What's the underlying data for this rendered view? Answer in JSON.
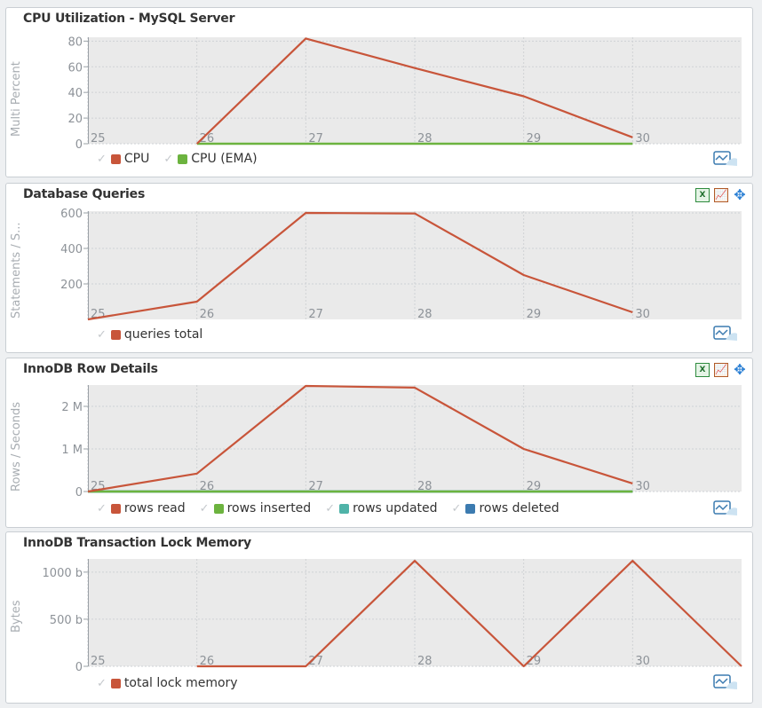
{
  "colors": {
    "plot_bg": "#eaeaea",
    "grid": "#cfd2d5",
    "tick": "#8d9298",
    "red": "#c8553a",
    "green": "#6cb33f",
    "teal": "#4fb3a8",
    "blue": "#3c7bb0"
  },
  "charts": [
    {
      "title": "CPU Utilization - MySQL Server",
      "ylabel": "Multi Percent",
      "legend": [
        {
          "name": "CPU",
          "color": "#c8553a"
        },
        {
          "name": "CPU (EMA)",
          "color": "#6cb33f"
        }
      ],
      "show_tools": false
    },
    {
      "title": "Database Queries",
      "ylabel": "Statements / S...",
      "legend": [
        {
          "name": "queries total",
          "color": "#c8553a"
        }
      ],
      "show_tools": true
    },
    {
      "title": "InnoDB Row Details",
      "ylabel": "Rows / Seconds",
      "legend": [
        {
          "name": "rows read",
          "color": "#c8553a"
        },
        {
          "name": "rows inserted",
          "color": "#6cb33f"
        },
        {
          "name": "rows updated",
          "color": "#4fb3a8"
        },
        {
          "name": "rows deleted",
          "color": "#3c7bb0"
        }
      ],
      "show_tools": true
    },
    {
      "title": "InnoDB Transaction Lock Memory",
      "ylabel": "Bytes",
      "legend": [
        {
          "name": "total lock memory",
          "color": "#c8553a"
        }
      ],
      "show_tools": false
    }
  ],
  "tools": {
    "excel": "X",
    "chart": "📈",
    "move": "✥"
  },
  "chart_data": [
    {
      "type": "line",
      "title": "CPU Utilization - MySQL Server",
      "ylabel": "Multi Percent",
      "xlim": [
        25,
        31
      ],
      "ylim": [
        0,
        83
      ],
      "x_ticks": [
        25,
        26,
        27,
        28,
        29,
        30
      ],
      "y_ticks": [
        {
          "v": 0,
          "t": "0"
        },
        {
          "v": 20,
          "t": "20"
        },
        {
          "v": 40,
          "t": "40"
        },
        {
          "v": 60,
          "t": "60"
        },
        {
          "v": 80,
          "t": "80"
        }
      ],
      "series": [
        {
          "name": "CPU",
          "color": "#c8553a",
          "width": 2.2,
          "points": [
            [
              26,
              0
            ],
            [
              27,
              82
            ],
            [
              28,
              59
            ],
            [
              29,
              37
            ],
            [
              30,
              5
            ]
          ]
        },
        {
          "name": "CPU (EMA)",
          "color": "#6cb33f",
          "width": 2.5,
          "points": [
            [
              26,
              0
            ],
            [
              30,
              0
            ]
          ]
        }
      ]
    },
    {
      "type": "line",
      "title": "Database Queries",
      "ylabel": "Statements / S...",
      "xlim": [
        25,
        31
      ],
      "ylim": [
        0,
        610
      ],
      "x_ticks": [
        25,
        26,
        27,
        28,
        29,
        30
      ],
      "y_ticks": [
        {
          "v": 200,
          "t": "200"
        },
        {
          "v": 400,
          "t": "400"
        },
        {
          "v": 600,
          "t": "600"
        }
      ],
      "series": [
        {
          "name": "queries total",
          "color": "#c8553a",
          "width": 2.2,
          "points": [
            [
              25,
              0
            ],
            [
              26,
              100
            ],
            [
              27,
              600
            ],
            [
              28,
              597
            ],
            [
              29,
              250
            ],
            [
              30,
              40
            ]
          ]
        }
      ]
    },
    {
      "type": "line",
      "title": "InnoDB Row Details",
      "ylabel": "Rows / Seconds",
      "xlim": [
        25,
        31
      ],
      "ylim": [
        0,
        2500000
      ],
      "x_ticks": [
        25,
        26,
        27,
        28,
        29,
        30
      ],
      "y_ticks": [
        {
          "v": 0,
          "t": "0"
        },
        {
          "v": 1000000,
          "t": "1 M"
        },
        {
          "v": 2000000,
          "t": "2 M"
        }
      ],
      "series": [
        {
          "name": "rows read",
          "color": "#c8553a",
          "width": 2.2,
          "points": [
            [
              25,
              0
            ],
            [
              26,
              420000
            ],
            [
              27,
              2480000
            ],
            [
              28,
              2440000
            ],
            [
              29,
              1000000
            ],
            [
              30,
              190000
            ]
          ]
        },
        {
          "name": "rows inserted",
          "color": "#6cb33f",
          "width": 2.5,
          "points": [
            [
              25,
              0
            ],
            [
              30,
              0
            ]
          ]
        },
        {
          "name": "rows updated",
          "color": "#4fb3a8",
          "width": 2.5,
          "points": [
            [
              25,
              0
            ],
            [
              30,
              0
            ]
          ]
        },
        {
          "name": "rows deleted",
          "color": "#3c7bb0",
          "width": 2.5,
          "points": [
            [
              25,
              0
            ],
            [
              30,
              0
            ]
          ]
        }
      ]
    },
    {
      "type": "line",
      "title": "InnoDB Transaction Lock Memory",
      "ylabel": "Bytes",
      "xlim": [
        25,
        31
      ],
      "ylim": [
        0,
        1140
      ],
      "x_ticks": [
        25,
        26,
        27,
        28,
        29,
        30
      ],
      "y_ticks": [
        {
          "v": 0,
          "t": "0"
        },
        {
          "v": 500,
          "t": "500 b"
        },
        {
          "v": 1000,
          "t": "1000 b"
        }
      ],
      "series": [
        {
          "name": "total lock memory",
          "color": "#c8553a",
          "width": 2.2,
          "points": [
            [
              26,
              0
            ],
            [
              27,
              0
            ],
            [
              28,
              1120
            ],
            [
              29,
              0
            ],
            [
              30,
              1120
            ],
            [
              31,
              0
            ]
          ]
        }
      ]
    }
  ]
}
